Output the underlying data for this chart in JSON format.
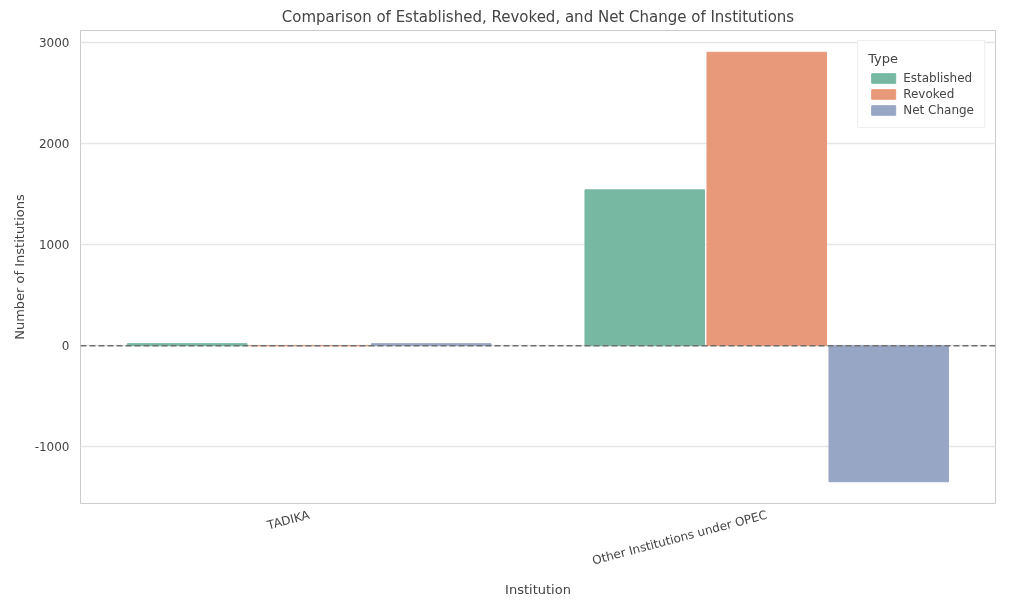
{
  "chart_data": {
    "type": "bar",
    "title": "Comparison of Established, Revoked, and Net Change of Institutions",
    "xlabel": "Institution",
    "ylabel": "Number of Institutions",
    "legend_title": "Type",
    "categories": [
      "TADIKA",
      "Other Institutions under OPEC"
    ],
    "series": [
      {
        "name": "Established",
        "color": "#76b8a2",
        "values": [
          20,
          1540
        ]
      },
      {
        "name": "Revoked",
        "color": "#e8997a",
        "values": [
          0,
          2900
        ]
      },
      {
        "name": "Net Change",
        "color": "#98a6c6",
        "values": [
          20,
          -1345
        ]
      }
    ],
    "ylim": [
      -1560,
      3115
    ],
    "yticks": [
      -1000,
      0,
      1000,
      2000,
      3000
    ],
    "ref_lines": [
      {
        "axis": "y",
        "value": 0,
        "color": "#707070",
        "line_style": "dashed"
      }
    ],
    "grid": "y",
    "legend": "top right"
  }
}
